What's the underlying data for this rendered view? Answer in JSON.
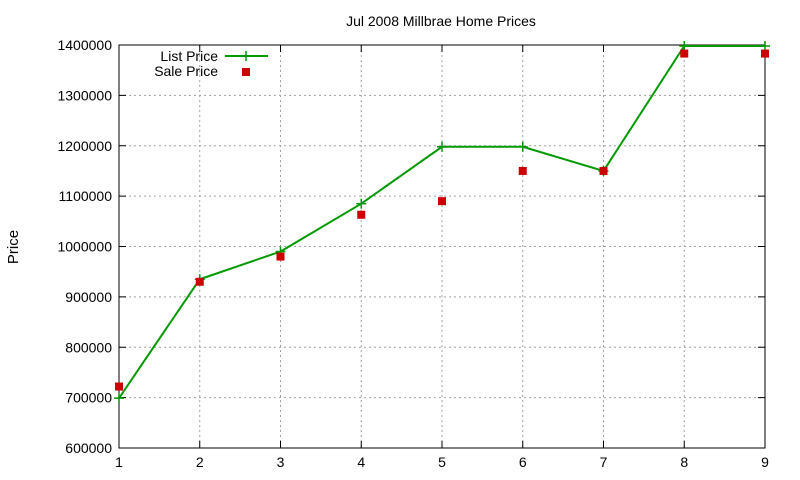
{
  "chart_data": {
    "type": "line",
    "title": "Jul 2008 Millbrae Home Prices",
    "xlabel": "",
    "ylabel": "Price",
    "x": [
      1,
      2,
      3,
      4,
      5,
      6,
      7,
      8,
      9
    ],
    "xlim": [
      1,
      9
    ],
    "ylim": [
      600000,
      1400000
    ],
    "yticks": [
      600000,
      700000,
      800000,
      900000,
      1000000,
      1100000,
      1200000,
      1300000,
      1400000
    ],
    "xticks": [
      1,
      2,
      3,
      4,
      5,
      6,
      7,
      8,
      9
    ],
    "grid": true,
    "legend_position": "top-left",
    "series": [
      {
        "name": "List Price",
        "kind": "line-points",
        "color": "#009900",
        "marker": "plus",
        "values": [
          699000,
          935000,
          990000,
          1085000,
          1198000,
          1198000,
          1150000,
          1398000,
          1398000
        ]
      },
      {
        "name": "Sale Price",
        "kind": "points",
        "color": "#cc0000",
        "marker": "square",
        "values": [
          722000,
          930000,
          980000,
          1063000,
          1090000,
          1150000,
          1150000,
          1383000,
          1383000
        ]
      }
    ]
  }
}
